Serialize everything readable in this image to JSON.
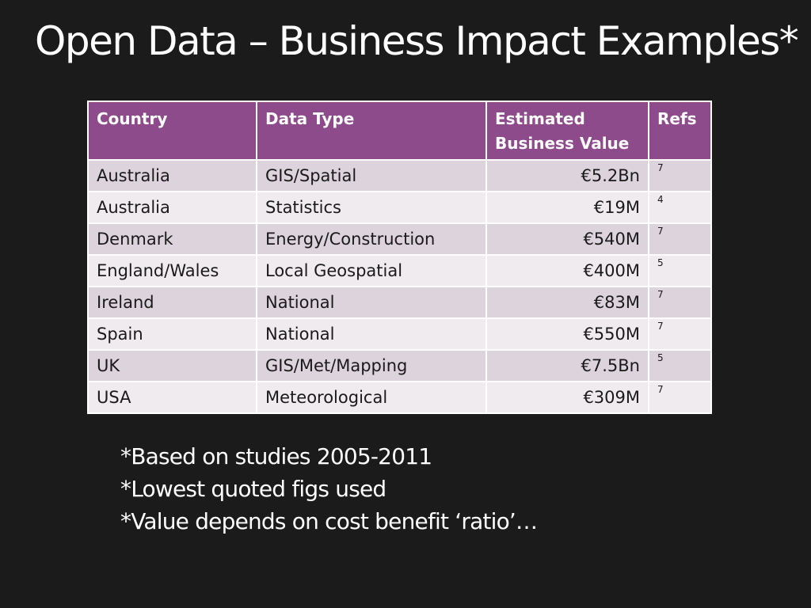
{
  "slide": {
    "title": "Open Data – Business Impact Examples*"
  },
  "table": {
    "headers": {
      "country": "Country",
      "data_type": "Data Type",
      "value_line1": "Estimated",
      "value_line2": "Business Value",
      "refs": "Refs"
    },
    "rows": [
      {
        "country": "Australia",
        "data_type": "GIS/Spatial",
        "value": "€5.2Bn",
        "ref": "7"
      },
      {
        "country": "Australia",
        "data_type": "Statistics",
        "value": "€19M",
        "ref": "4"
      },
      {
        "country": "Denmark",
        "data_type": "Energy/Construction",
        "value": "€540M",
        "ref": "7"
      },
      {
        "country": "England/Wales",
        "data_type": "Local Geospatial",
        "value": "€400M",
        "ref": "5"
      },
      {
        "country": "Ireland",
        "data_type": "National",
        "value": "€83M",
        "ref": "7"
      },
      {
        "country": "Spain",
        "data_type": "National",
        "value": "€550M",
        "ref": "7"
      },
      {
        "country": "UK",
        "data_type": "GIS/Met/Mapping",
        "value": "€7.5Bn",
        "ref": "5"
      },
      {
        "country": "USA",
        "data_type": "Meteorological",
        "value": "€309M",
        "ref": "7"
      }
    ]
  },
  "notes": [
    "*Based on studies 2005-2011",
    "*Lowest quoted figs used",
    "*Value depends on cost benefit ‘ratio’…"
  ],
  "colors": {
    "background": "#1c1b1b",
    "header_fill": "#8e4b8c",
    "row_odd": "#dcd3dc",
    "row_even": "#efebef"
  }
}
